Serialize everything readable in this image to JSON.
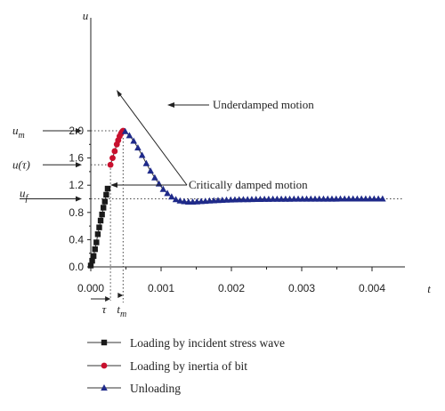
{
  "chart_data": {
    "type": "line",
    "xlabel": "t",
    "ylabel": "u",
    "xlim": [
      -0.0001,
      0.0044
    ],
    "ylim": [
      0,
      2.1
    ],
    "x_ticks": [
      0.0,
      0.001,
      0.002,
      0.003,
      0.004
    ],
    "x_tick_labels": [
      "0.000",
      "0.001",
      "0.002",
      "0.003",
      "0.004"
    ],
    "y_ticks": [
      0.0,
      0.4,
      0.8,
      1.2,
      1.6,
      2.0
    ],
    "y_tick_labels": [
      "0.0",
      "0.4",
      "0.8",
      "1.2",
      "1.6",
      "2.0"
    ],
    "markers": {
      "um": {
        "label": "u",
        "sub": "m",
        "value": 2.0
      },
      "utau": {
        "label": "u(τ)",
        "value": 1.5
      },
      "uf": {
        "label": "u",
        "sub": "f",
        "value": 1.0
      },
      "tau": {
        "label": "τ",
        "value": 0.00028
      },
      "tm": {
        "label": "t",
        "sub": "m",
        "value": 0.00046
      }
    },
    "series": [
      {
        "name": "Loading by incident stress wave",
        "color": "#1a1a1a",
        "marker": "square",
        "x": [
          0.0,
          2e-05,
          4e-05,
          6e-05,
          8e-05,
          0.0001,
          0.00012,
          0.00014,
          0.00016,
          0.00018,
          0.0002,
          0.00022,
          0.00024
        ],
        "y": [
          0.02,
          0.09,
          0.16,
          0.26,
          0.36,
          0.48,
          0.58,
          0.68,
          0.77,
          0.87,
          0.96,
          1.06,
          1.15
        ]
      },
      {
        "name": "Loading by inertia of bit",
        "color": "#c8102e",
        "marker": "circle",
        "x": [
          0.00028,
          0.00031,
          0.00034,
          0.00037,
          0.00039,
          0.00041,
          0.00043,
          0.00045,
          0.00046
        ],
        "y": [
          1.5,
          1.6,
          1.7,
          1.8,
          1.86,
          1.92,
          1.96,
          1.99,
          2.0
        ]
      },
      {
        "name": "Unloading",
        "color": "#1f2a8a",
        "marker": "triangle",
        "x": [
          0.00049,
          0.00055,
          0.00061,
          0.00067,
          0.00073,
          0.00079,
          0.00085,
          0.00091,
          0.00097,
          0.00103,
          0.00109,
          0.00115,
          0.00121,
          0.00127,
          0.00133,
          0.00139,
          0.00145,
          0.00151,
          0.00157,
          0.00163,
          0.00169,
          0.00175,
          0.00181,
          0.00187,
          0.00193,
          0.00199,
          0.00205,
          0.00211,
          0.00217,
          0.00223,
          0.00229,
          0.00235,
          0.00241,
          0.00247,
          0.00253,
          0.00259,
          0.00265,
          0.00271,
          0.00277,
          0.00283,
          0.00289,
          0.00295,
          0.00301,
          0.00307,
          0.00313,
          0.00319,
          0.00325,
          0.00331,
          0.00337,
          0.00343,
          0.00349,
          0.00355,
          0.00361,
          0.00367,
          0.00373,
          0.00379,
          0.00385,
          0.00391,
          0.00397,
          0.00403,
          0.00409,
          0.00415
        ],
        "y": [
          1.99,
          1.93,
          1.85,
          1.75,
          1.64,
          1.52,
          1.41,
          1.31,
          1.22,
          1.14,
          1.08,
          1.03,
          0.99,
          0.97,
          0.96,
          0.955,
          0.955,
          0.958,
          0.962,
          0.966,
          0.97,
          0.974,
          0.977,
          0.98,
          0.983,
          0.985,
          0.987,
          0.989,
          0.99,
          0.991,
          0.992,
          0.993,
          0.994,
          0.995,
          0.995,
          0.996,
          0.996,
          0.997,
          0.997,
          0.997,
          0.998,
          0.998,
          0.998,
          0.998,
          0.999,
          0.999,
          0.999,
          0.999,
          0.999,
          0.999,
          0.999,
          1.0,
          1.0,
          1.0,
          1.0,
          1.0,
          1.0,
          1.0,
          1.0,
          1.0,
          1.0,
          1.0
        ]
      }
    ],
    "annotations": [
      {
        "text": "Underdamped motion"
      },
      {
        "text": "Critically damped motion"
      }
    ],
    "legend_position": "bottom"
  }
}
